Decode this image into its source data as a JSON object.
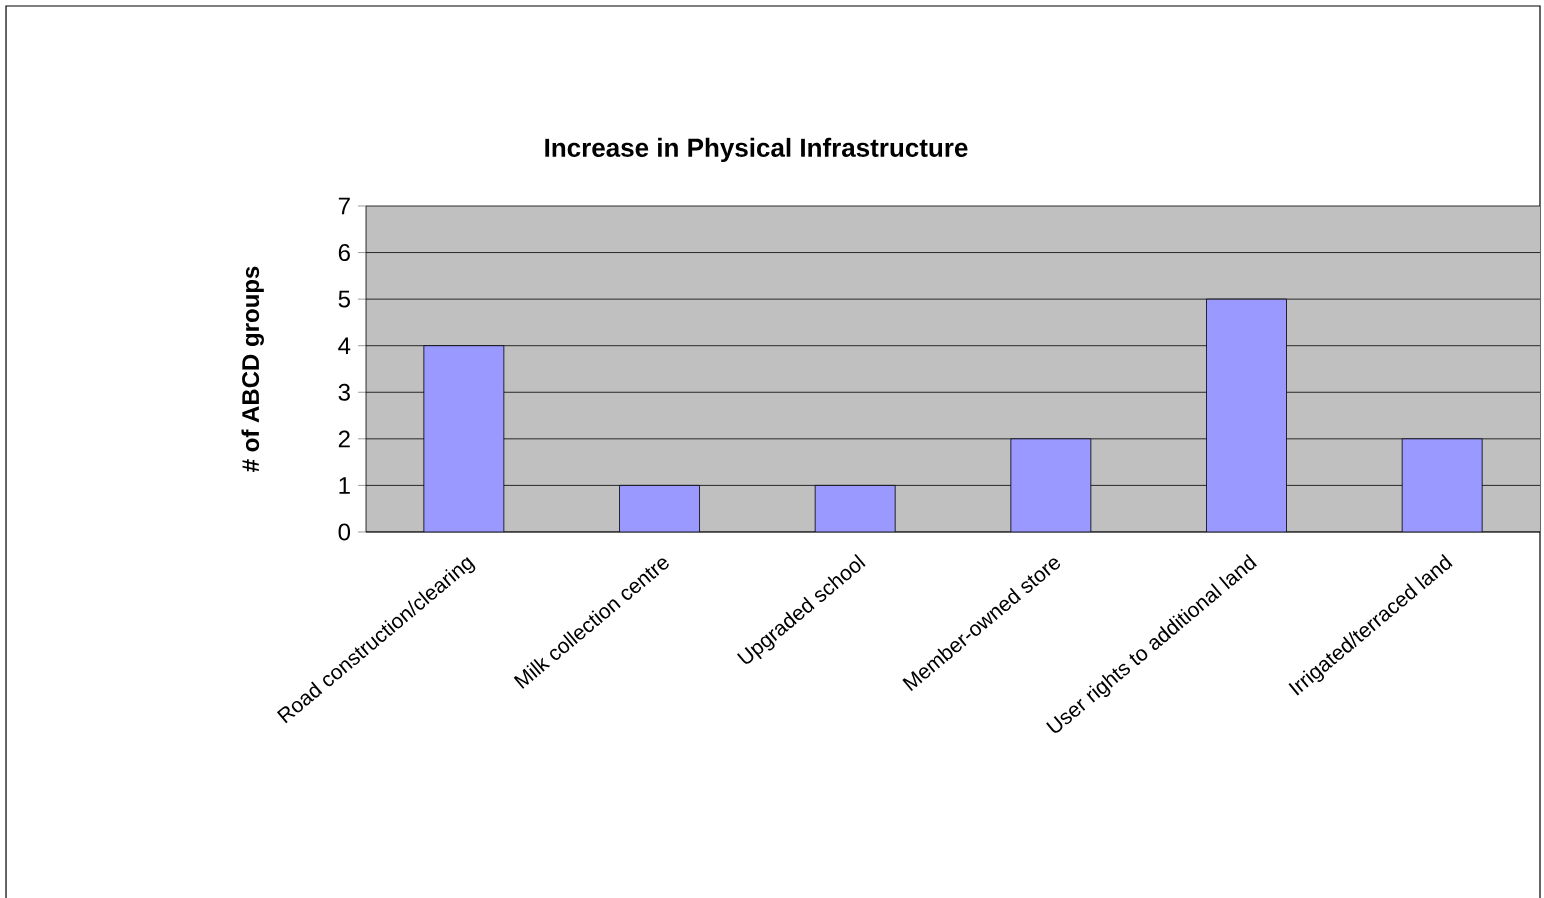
{
  "chart_data": {
    "type": "bar",
    "title": "Increase in Physical Infrastructure",
    "ylabel": "# of ABCD groups",
    "categories": [
      "Road construction/clearing",
      "Milk collection centre",
      "Upgraded school",
      "Member-owned store",
      "User rights to additional land",
      "Irrigated/terraced land"
    ],
    "values": [
      4,
      1,
      1,
      2,
      5,
      2
    ],
    "color": "#9999ff",
    "ylim": [
      0,
      7
    ],
    "yticks": [
      0,
      1,
      2,
      3,
      4,
      5,
      6,
      7
    ],
    "grid": "y"
  }
}
